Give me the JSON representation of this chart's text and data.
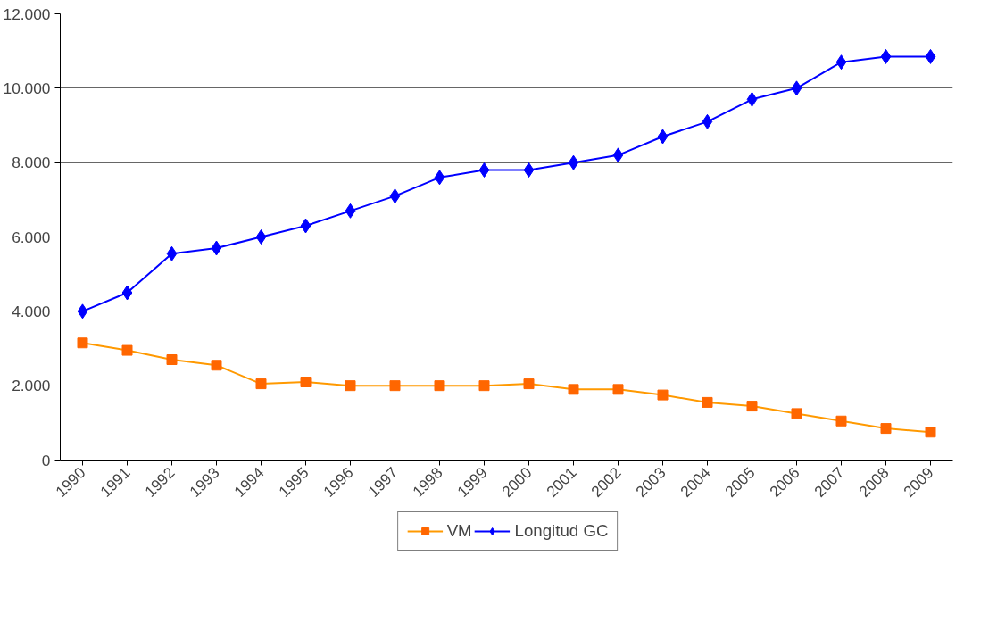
{
  "chart_data": {
    "type": "line",
    "categories": [
      "1990",
      "1991",
      "1992",
      "1993",
      "1994",
      "1995",
      "1996",
      "1997",
      "1998",
      "1999",
      "2000",
      "2001",
      "2002",
      "2003",
      "2004",
      "2005",
      "2006",
      "2007",
      "2008",
      "2009"
    ],
    "series": [
      {
        "name": "VM",
        "color": "#ff9900",
        "marker": "square",
        "values": [
          3150,
          2950,
          2700,
          2550,
          2050,
          2100,
          2000,
          2000,
          2000,
          2000,
          2050,
          1900,
          1900,
          1750,
          1550,
          1450,
          1250,
          1050,
          850,
          750
        ]
      },
      {
        "name": "Longitud GC",
        "color": "#0000ff",
        "marker": "diamond",
        "values": [
          4000,
          4500,
          5550,
          5700,
          6000,
          6300,
          6700,
          7100,
          7600,
          7800,
          7800,
          8000,
          8200,
          8700,
          9100,
          9700,
          10000,
          10700,
          10850,
          10850
        ]
      }
    ],
    "ylim": [
      0,
      12000
    ],
    "yticks": [
      0,
      {
        "value": 2000,
        "label": "2.000"
      },
      {
        "value": 4000,
        "label": "4.000"
      },
      {
        "value": 6000,
        "label": "6.000"
      },
      {
        "value": 8000,
        "label": "8.000"
      },
      {
        "value": 10000,
        "label": "10.000"
      },
      {
        "value": 12000,
        "label": "12.000"
      }
    ],
    "grid": "y",
    "legend": "bottom",
    "line_style": "solid"
  }
}
